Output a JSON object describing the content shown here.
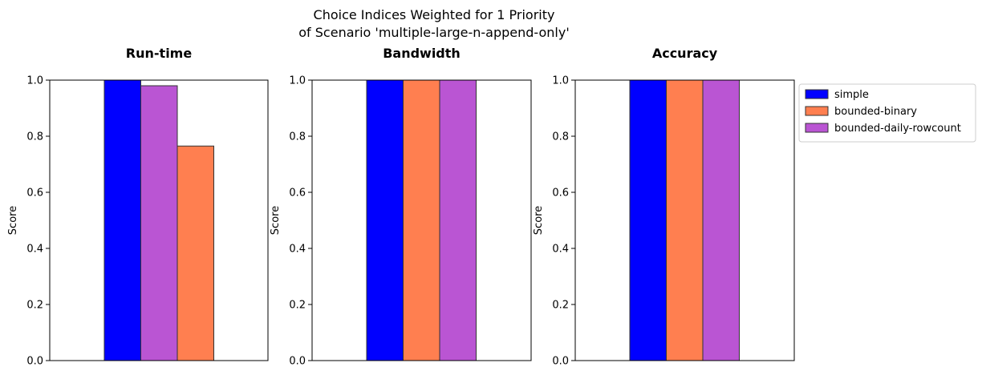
{
  "figure": {
    "title_line1": "Choice Indices Weighted for 1 Priority",
    "title_line2": "of Scenario 'multiple-large-n-append-only'"
  },
  "legend": {
    "placement": "upper-right outside",
    "entries": [
      {
        "label": "simple",
        "color": "#0000ff"
      },
      {
        "label": "bounded-binary",
        "color": "#ff7f50"
      },
      {
        "label": "bounded-daily-rowcount",
        "color": "#ba55d3"
      }
    ]
  },
  "chart_data": [
    {
      "type": "bar",
      "title": "Run-time",
      "xlabel": "",
      "ylabel": "Score",
      "ylim": [
        0,
        1
      ],
      "yticks": [
        "0.0",
        "0.2",
        "0.4",
        "0.6",
        "0.8",
        "1.0"
      ],
      "bars": [
        {
          "series": "simple",
          "value": 1.0,
          "color": "#0000ff"
        },
        {
          "series": "bounded-daily-rowcount",
          "value": 0.98,
          "color": "#ba55d3"
        },
        {
          "series": "bounded-binary",
          "value": 0.765,
          "color": "#ff7f50"
        }
      ]
    },
    {
      "type": "bar",
      "title": "Bandwidth",
      "xlabel": "",
      "ylabel": "Score",
      "ylim": [
        0,
        1
      ],
      "yticks": [
        "0.0",
        "0.2",
        "0.4",
        "0.6",
        "0.8",
        "1.0"
      ],
      "bars": [
        {
          "series": "simple",
          "value": 1.0,
          "color": "#0000ff"
        },
        {
          "series": "bounded-binary",
          "value": 1.0,
          "color": "#ff7f50"
        },
        {
          "series": "bounded-daily-rowcount",
          "value": 1.0,
          "color": "#ba55d3"
        }
      ]
    },
    {
      "type": "bar",
      "title": "Accuracy",
      "xlabel": "",
      "ylabel": "Score",
      "ylim": [
        0,
        1
      ],
      "yticks": [
        "0.0",
        "0.2",
        "0.4",
        "0.6",
        "0.8",
        "1.0"
      ],
      "bars": [
        {
          "series": "simple",
          "value": 1.0,
          "color": "#0000ff"
        },
        {
          "series": "bounded-binary",
          "value": 1.0,
          "color": "#ff7f50"
        },
        {
          "series": "bounded-daily-rowcount",
          "value": 1.0,
          "color": "#ba55d3"
        }
      ]
    }
  ]
}
